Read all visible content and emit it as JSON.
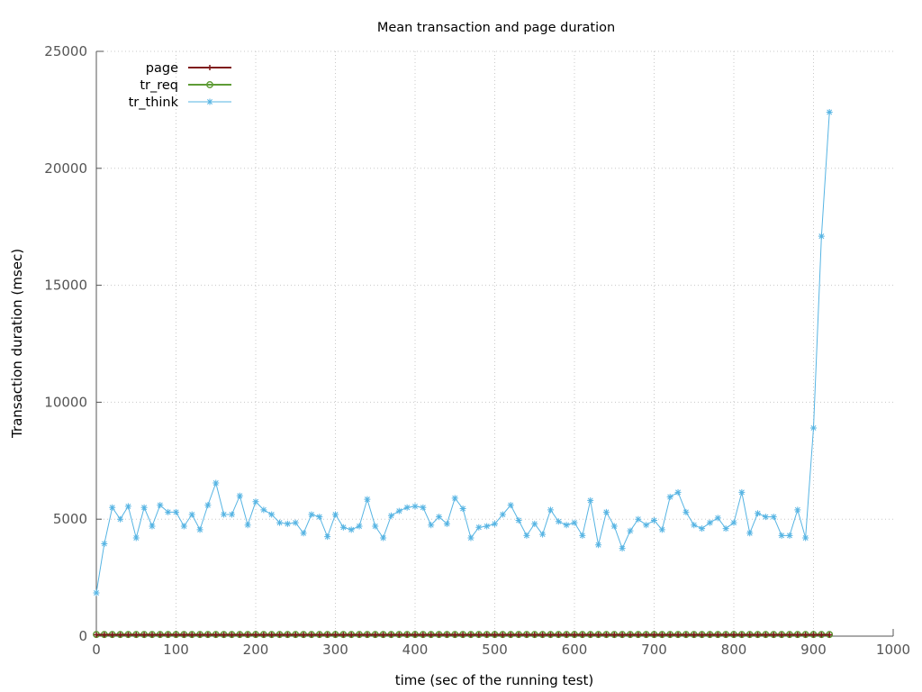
{
  "chart_data": {
    "type": "line",
    "title": "Mean transaction and page duration",
    "xlabel": "time (sec of the running test)",
    "ylabel": "Transaction duration (msec)",
    "xlim": [
      0,
      1000
    ],
    "ylim": [
      0,
      25000
    ],
    "xticks": [
      "0",
      "100",
      "200",
      "300",
      "400",
      "500",
      "600",
      "700",
      "800",
      "900",
      "1000"
    ],
    "yticks": [
      "0",
      "5000",
      "10000",
      "15000",
      "20000",
      "25000"
    ],
    "grid": true,
    "legend_position": "top-left",
    "x": [
      0,
      10,
      20,
      30,
      40,
      50,
      60,
      70,
      80,
      90,
      100,
      110,
      120,
      130,
      140,
      150,
      160,
      170,
      180,
      190,
      200,
      210,
      220,
      230,
      240,
      250,
      260,
      270,
      280,
      290,
      300,
      310,
      320,
      330,
      340,
      350,
      360,
      370,
      380,
      390,
      400,
      410,
      420,
      430,
      440,
      450,
      460,
      470,
      480,
      490,
      500,
      510,
      520,
      530,
      540,
      550,
      560,
      570,
      580,
      590,
      600,
      610,
      620,
      630,
      640,
      650,
      660,
      670,
      680,
      690,
      700,
      710,
      720,
      730,
      740,
      750,
      760,
      770,
      780,
      790,
      800,
      810,
      820,
      830,
      840,
      850,
      860,
      870,
      880,
      890,
      900,
      910,
      920
    ],
    "series": [
      {
        "name": "page",
        "color": "#7f1a1a",
        "marker": "plus",
        "values": [
          60,
          60,
          60,
          60,
          60,
          60,
          60,
          60,
          60,
          60,
          60,
          60,
          60,
          60,
          60,
          60,
          60,
          60,
          60,
          60,
          60,
          60,
          60,
          60,
          60,
          60,
          60,
          60,
          60,
          60,
          60,
          60,
          60,
          60,
          60,
          60,
          60,
          60,
          60,
          60,
          60,
          60,
          60,
          60,
          60,
          60,
          60,
          60,
          60,
          60,
          60,
          60,
          60,
          60,
          60,
          60,
          60,
          60,
          60,
          60,
          60,
          60,
          60,
          60,
          60,
          60,
          60,
          60,
          60,
          60,
          60,
          60,
          60,
          60,
          60,
          60,
          60,
          60,
          60,
          60,
          60,
          60,
          60,
          60,
          60,
          60,
          60,
          60,
          60,
          60,
          60,
          60,
          60
        ]
      },
      {
        "name": "tr_req",
        "color": "#5e9c36",
        "marker": "circle",
        "values": [
          70,
          70,
          70,
          70,
          70,
          70,
          70,
          70,
          70,
          70,
          70,
          70,
          70,
          70,
          70,
          70,
          70,
          70,
          70,
          70,
          70,
          70,
          70,
          70,
          70,
          70,
          70,
          70,
          70,
          70,
          70,
          70,
          70,
          70,
          70,
          70,
          70,
          70,
          70,
          70,
          70,
          70,
          70,
          70,
          70,
          70,
          70,
          70,
          70,
          70,
          70,
          70,
          70,
          70,
          70,
          70,
          70,
          70,
          70,
          70,
          70,
          70,
          70,
          70,
          70,
          70,
          70,
          70,
          70,
          70,
          70,
          70,
          70,
          70,
          70,
          70,
          70,
          70,
          70,
          70,
          70,
          70,
          70,
          70,
          70,
          70,
          70,
          70,
          70,
          70,
          70,
          70,
          70
        ]
      },
      {
        "name": "tr_think",
        "color": "#56b4e3",
        "marker": "star",
        "values": [
          1850,
          3950,
          5500,
          5000,
          5550,
          4200,
          5500,
          4700,
          5600,
          5300,
          5300,
          4700,
          5200,
          4550,
          5600,
          6550,
          5200,
          5200,
          6000,
          4750,
          5750,
          5400,
          5200,
          4850,
          4800,
          4850,
          4400,
          5200,
          5100,
          4250,
          5200,
          4650,
          4550,
          4700,
          5850,
          4700,
          4200,
          5150,
          5350,
          5500,
          5550,
          5500,
          4750,
          5100,
          4800,
          5900,
          5450,
          4200,
          4650,
          4700,
          4800,
          5200,
          5600,
          4950,
          4300,
          4800,
          4350,
          5400,
          4900,
          4750,
          4850,
          4300,
          5800,
          3900,
          5300,
          4700,
          3750,
          4500,
          5000,
          4750,
          4950,
          4550,
          5950,
          6150,
          5300,
          4750,
          4600,
          4850,
          5050,
          4600,
          4850,
          6150,
          4400,
          5250,
          5100,
          5100,
          4300,
          4300,
          5400,
          4200,
          8900,
          17100,
          22400
        ]
      }
    ]
  }
}
